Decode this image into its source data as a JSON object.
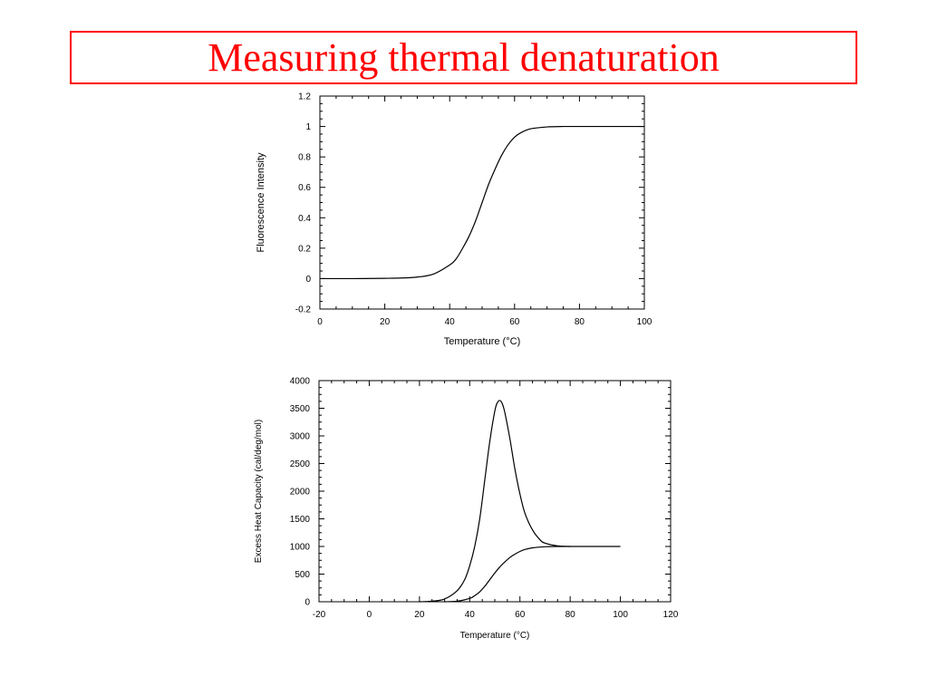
{
  "slide": {
    "title": "Measuring thermal denaturation",
    "title_color": "#ff0000"
  },
  "chart_data": [
    {
      "type": "line",
      "title": "",
      "xlabel": "Temperature (°C)",
      "ylabel": "Fluorescence Intensity",
      "xlim": [
        0,
        100
      ],
      "ylim": [
        -0.2,
        1.2
      ],
      "x_ticks": [
        "0",
        "20",
        "40",
        "60",
        "80",
        "100"
      ],
      "y_ticks": [
        "-0.2",
        "0",
        "0.2",
        "0.4",
        "0.6",
        "0.8",
        "1",
        "1.2"
      ],
      "grid": false,
      "line_color": "#000000",
      "series": [
        {
          "name": "",
          "x": [
            0,
            10,
            20,
            25,
            30,
            35,
            40,
            42,
            44,
            46,
            48,
            50,
            52,
            54,
            56,
            58,
            60,
            62,
            65,
            70,
            75,
            80,
            90,
            100
          ],
          "y": [
            0,
            0,
            0.002,
            0.004,
            0.01,
            0.03,
            0.09,
            0.13,
            0.2,
            0.28,
            0.38,
            0.5,
            0.62,
            0.72,
            0.81,
            0.88,
            0.93,
            0.96,
            0.985,
            0.997,
            1.0,
            1.0,
            1.0,
            1.0
          ]
        }
      ]
    },
    {
      "type": "line",
      "title": "",
      "xlabel": "Temperature (°C)",
      "ylabel": "Excess Heat Capacity (cal/deg/mol)",
      "xlim": [
        -20,
        120
      ],
      "ylim": [
        0,
        4000
      ],
      "x_ticks": [
        "-20",
        "0",
        "20",
        "40",
        "60",
        "80",
        "100",
        "120"
      ],
      "y_ticks": [
        "0",
        "500",
        "1000",
        "1500",
        "2000",
        "2500",
        "3000",
        "3500",
        "4000"
      ],
      "grid": false,
      "line_color": "#000000",
      "series": [
        {
          "name": "",
          "x": [
            20,
            25,
            30,
            35,
            38,
            40,
            42,
            44,
            46,
            48,
            50,
            51,
            52,
            53,
            54,
            56,
            58,
            60,
            62,
            65,
            68,
            70,
            75,
            80
          ],
          "y": [
            0,
            10,
            50,
            200,
            400,
            650,
            1000,
            1500,
            2200,
            2900,
            3450,
            3600,
            3640,
            3580,
            3420,
            2950,
            2400,
            1950,
            1600,
            1300,
            1120,
            1060,
            1010,
            1000
          ]
        },
        {
          "name": "",
          "x": [
            30,
            35,
            40,
            42,
            44,
            46,
            48,
            50,
            52,
            54,
            56,
            58,
            60,
            62,
            65,
            70,
            75,
            80,
            90,
            100
          ],
          "y": [
            0,
            10,
            60,
            110,
            180,
            280,
            400,
            520,
            630,
            720,
            800,
            860,
            910,
            945,
            975,
            995,
            1000,
            1000,
            1000,
            1000
          ]
        }
      ]
    }
  ]
}
